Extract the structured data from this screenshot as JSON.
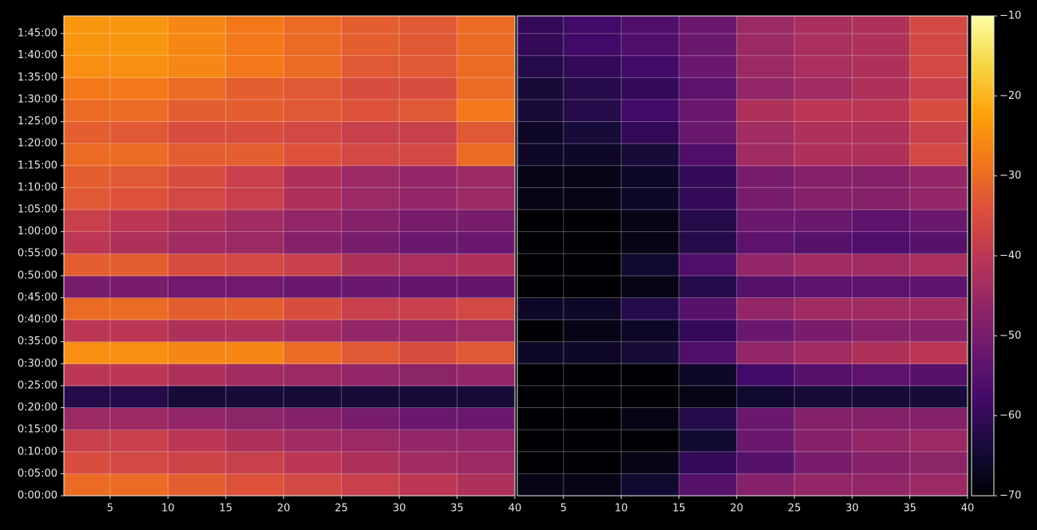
{
  "chart_data": [
    {
      "type": "heatmap",
      "colormap": "inferno",
      "grid": true,
      "x_edges": [
        1,
        5,
        10,
        15,
        20,
        25,
        30,
        35,
        40
      ],
      "y_edges": [
        0,
        300,
        600,
        900,
        1200,
        1500,
        1800,
        2100,
        2400,
        2700,
        3000,
        3300,
        3600,
        3900,
        4200,
        4500,
        4800,
        5100,
        5400,
        5700,
        6000,
        6300,
        6540
      ],
      "xlim": [
        1,
        40
      ],
      "ylim": [
        0,
        6540
      ],
      "xticks": [
        5,
        10,
        15,
        20,
        25,
        30,
        35,
        40
      ],
      "yticks": [
        {
          "value": 0,
          "label": "0:00:00"
        },
        {
          "value": 300,
          "label": "0:05:00"
        },
        {
          "value": 600,
          "label": "0:10:00"
        },
        {
          "value": 900,
          "label": "0:15:00"
        },
        {
          "value": 1200,
          "label": "0:20:00"
        },
        {
          "value": 1500,
          "label": "0:25:00"
        },
        {
          "value": 1800,
          "label": "0:30:00"
        },
        {
          "value": 2100,
          "label": "0:35:00"
        },
        {
          "value": 2400,
          "label": "0:40:00"
        },
        {
          "value": 2700,
          "label": "0:45:00"
        },
        {
          "value": 3000,
          "label": "0:50:00"
        },
        {
          "value": 3300,
          "label": "0:55:00"
        },
        {
          "value": 3600,
          "label": "1:00:00"
        },
        {
          "value": 3900,
          "label": "1:05:00"
        },
        {
          "value": 4200,
          "label": "1:10:00"
        },
        {
          "value": 4500,
          "label": "1:15:00"
        },
        {
          "value": 4800,
          "label": "1:20:00"
        },
        {
          "value": 5100,
          "label": "1:25:00"
        },
        {
          "value": 5400,
          "label": "1:30:00"
        },
        {
          "value": 5700,
          "label": "1:35:00"
        },
        {
          "value": 6000,
          "label": "1:40:00"
        },
        {
          "value": 6300,
          "label": "1:45:00"
        }
      ],
      "values": [
        [
          -30,
          -30,
          -32,
          -34,
          -36,
          -38,
          -40,
          -42
        ],
        [
          -35,
          -36,
          -37,
          -38,
          -40,
          -42,
          -44,
          -45
        ],
        [
          -38,
          -38,
          -40,
          -42,
          -44,
          -45,
          -46,
          -46
        ],
        [
          -45,
          -45,
          -46,
          -47,
          -48,
          -50,
          -52,
          -52
        ],
        [
          -62,
          -62,
          -64,
          -64,
          -64,
          -64,
          -64,
          -64
        ],
        [
          -40,
          -40,
          -42,
          -44,
          -45,
          -46,
          -47,
          -46
        ],
        [
          -25,
          -25,
          -26,
          -26,
          -30,
          -33,
          -35,
          -33
        ],
        [
          -40,
          -40,
          -42,
          -42,
          -44,
          -46,
          -46,
          -45
        ],
        [
          -30,
          -30,
          -32,
          -32,
          -35,
          -38,
          -38,
          -36
        ],
        [
          -50,
          -50,
          -51,
          -51,
          -52,
          -52,
          -53,
          -53
        ],
        [
          -32,
          -32,
          -35,
          -36,
          -38,
          -42,
          -43,
          -42
        ],
        [
          -40,
          -42,
          -44,
          -45,
          -48,
          -50,
          -52,
          -52
        ],
        [
          -38,
          -40,
          -42,
          -44,
          -46,
          -48,
          -50,
          -50
        ],
        [
          -33,
          -34,
          -36,
          -38,
          -42,
          -45,
          -46,
          -45
        ],
        [
          -32,
          -33,
          -35,
          -38,
          -42,
          -45,
          -46,
          -45
        ],
        [
          -30,
          -30,
          -32,
          -32,
          -34,
          -36,
          -36,
          -30
        ],
        [
          -32,
          -33,
          -35,
          -35,
          -36,
          -38,
          -38,
          -33
        ],
        [
          -30,
          -30,
          -32,
          -32,
          -33,
          -34,
          -33,
          -28
        ],
        [
          -28,
          -28,
          -30,
          -32,
          -33,
          -35,
          -35,
          -30
        ],
        [
          -25,
          -25,
          -26,
          -28,
          -30,
          -33,
          -33,
          -30
        ],
        [
          -24,
          -24,
          -26,
          -28,
          -30,
          -32,
          -33,
          -30
        ],
        [
          -24,
          -24,
          -26,
          -28,
          -30,
          -32,
          -33,
          -30
        ]
      ]
    },
    {
      "type": "heatmap",
      "colormap": "inferno",
      "grid": true,
      "x_edges": [
        1,
        5,
        10,
        15,
        20,
        25,
        30,
        35,
        40
      ],
      "y_edges": [
        0,
        300,
        600,
        900,
        1200,
        1500,
        1800,
        2100,
        2400,
        2700,
        3000,
        3300,
        3600,
        3900,
        4200,
        4500,
        4800,
        5100,
        5400,
        5700,
        6000,
        6300,
        6540
      ],
      "xlim": [
        1,
        40
      ],
      "ylim": [
        0,
        6540
      ],
      "xticks": [
        5,
        10,
        15,
        20,
        25,
        30,
        35,
        40
      ],
      "clim": [
        -70,
        -10
      ],
      "cticks": [
        {
          "value": -10,
          "label": "−10"
        },
        {
          "value": -20,
          "label": "−20"
        },
        {
          "value": -30,
          "label": "−30"
        },
        {
          "value": -40,
          "label": "−40"
        },
        {
          "value": -50,
          "label": "−50"
        },
        {
          "value": -60,
          "label": "−60"
        },
        {
          "value": -70,
          "label": "−70"
        }
      ],
      "values": [
        [
          -68,
          -68,
          -65,
          -55,
          -48,
          -46,
          -46,
          -45
        ],
        [
          -70,
          -70,
          -68,
          -60,
          -55,
          -50,
          -48,
          -47
        ],
        [
          -70,
          -70,
          -70,
          -65,
          -52,
          -48,
          -46,
          -45
        ],
        [
          -70,
          -70,
          -68,
          -62,
          -52,
          -48,
          -48,
          -48
        ],
        [
          -70,
          -70,
          -70,
          -68,
          -65,
          -64,
          -64,
          -64
        ],
        [
          -70,
          -70,
          -70,
          -66,
          -58,
          -55,
          -54,
          -55
        ],
        [
          -66,
          -66,
          -64,
          -56,
          -46,
          -44,
          -42,
          -40
        ],
        [
          -70,
          -68,
          -66,
          -60,
          -52,
          -50,
          -48,
          -48
        ],
        [
          -66,
          -66,
          -62,
          -55,
          -46,
          -44,
          -44,
          -44
        ],
        [
          -70,
          -70,
          -68,
          -62,
          -55,
          -54,
          -54,
          -54
        ],
        [
          -70,
          -70,
          -65,
          -56,
          -46,
          -44,
          -44,
          -43
        ],
        [
          -70,
          -70,
          -68,
          -62,
          -54,
          -55,
          -56,
          -55
        ],
        [
          -70,
          -70,
          -68,
          -62,
          -52,
          -52,
          -54,
          -52
        ],
        [
          -68,
          -68,
          -66,
          -60,
          -50,
          -48,
          -48,
          -46
        ],
        [
          -68,
          -68,
          -66,
          -60,
          -50,
          -48,
          -48,
          -46
        ],
        [
          -66,
          -66,
          -64,
          -56,
          -44,
          -42,
          -42,
          -36
        ],
        [
          -66,
          -64,
          -60,
          -52,
          -44,
          -42,
          -42,
          -38
        ],
        [
          -64,
          -62,
          -58,
          -52,
          -42,
          -40,
          -40,
          -35
        ],
        [
          -64,
          -62,
          -60,
          -54,
          -46,
          -44,
          -42,
          -38
        ],
        [
          -62,
          -60,
          -58,
          -52,
          -45,
          -43,
          -42,
          -36
        ],
        [
          -60,
          -58,
          -56,
          -52,
          -45,
          -43,
          -42,
          -36
        ],
        [
          -60,
          -58,
          -56,
          -52,
          -45,
          -43,
          -42,
          -36
        ]
      ]
    }
  ]
}
